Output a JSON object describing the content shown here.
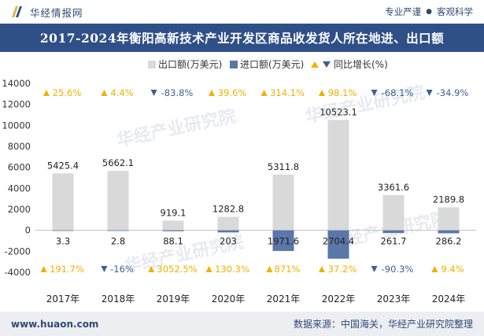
{
  "header": {
    "brand": "华经情报网",
    "tags": [
      "专业严谨",
      "客观科学"
    ]
  },
  "title": "2017-2024年衡阳高新技术产业开发区商品收发货人所在地进、出口额",
  "legend": {
    "export": "出口额(万美元)",
    "import": "进口额(万美元)",
    "yoy": "同比增长(%)"
  },
  "watermark": "华经产业研究院",
  "footer": {
    "url": "www.huaon.com",
    "source": "数据来源：中国海关，华经产业研究院整理"
  },
  "colors": {
    "export": "#d9d9d9",
    "import": "#5b76a8",
    "up": "#f2b000",
    "down": "#3c5f93",
    "title_bg": "#2f4f87",
    "footer_bg": "#eceef2"
  },
  "chart_data": {
    "type": "bar",
    "categories": [
      "2017年",
      "2018年",
      "2019年",
      "2020年",
      "2021年",
      "2022年",
      "2023年",
      "2024年"
    ],
    "series": [
      {
        "name": "出口额(万美元)",
        "values": [
          5425.4,
          5662.1,
          919.1,
          1282.8,
          5311.8,
          10523.1,
          3361.6,
          2189.8
        ]
      },
      {
        "name": "进口额(万美元)",
        "values": [
          3.3,
          2.8,
          88.1,
          203,
          1971.6,
          2704.4,
          261.7,
          286.2
        ]
      }
    ],
    "export_labels": [
      "5425.4",
      "5662.1",
      "919.1",
      "1282.8",
      "5311.8",
      "10523.1",
      "3361.6",
      "2189.8"
    ],
    "import_labels": [
      "3.3",
      "2.8",
      "88.1",
      "203",
      "1971.6",
      "2704.4",
      "261.7",
      "286.2"
    ],
    "export_growth": [
      {
        "label": "25.6%",
        "dir": "up"
      },
      {
        "label": "4.4%",
        "dir": "up"
      },
      {
        "label": "-83.8%",
        "dir": "down"
      },
      {
        "label": "39.6%",
        "dir": "up"
      },
      {
        "label": "314.1%",
        "dir": "up"
      },
      {
        "label": "98.1%",
        "dir": "up"
      },
      {
        "label": "-68.1%",
        "dir": "down"
      },
      {
        "label": "-34.9%",
        "dir": "down"
      }
    ],
    "import_growth": [
      {
        "label": "191.7%",
        "dir": "up"
      },
      {
        "label": "-16%",
        "dir": "down"
      },
      {
        "label": "3052.5%",
        "dir": "up"
      },
      {
        "label": "130.3%",
        "dir": "up"
      },
      {
        "label": "871%",
        "dir": "up"
      },
      {
        "label": "37.2%",
        "dir": "up"
      },
      {
        "label": "-90.3%",
        "dir": "down"
      },
      {
        "label": "9.4%",
        "dir": "up"
      }
    ],
    "yticks": [
      -4000,
      -2000,
      0,
      2000,
      4000,
      6000,
      8000,
      10000,
      12000,
      14000
    ],
    "ylim": [
      -4000,
      14000
    ],
    "legend_position": "top-center",
    "grid": false,
    "note": "进口额 plotted below zero axis"
  }
}
